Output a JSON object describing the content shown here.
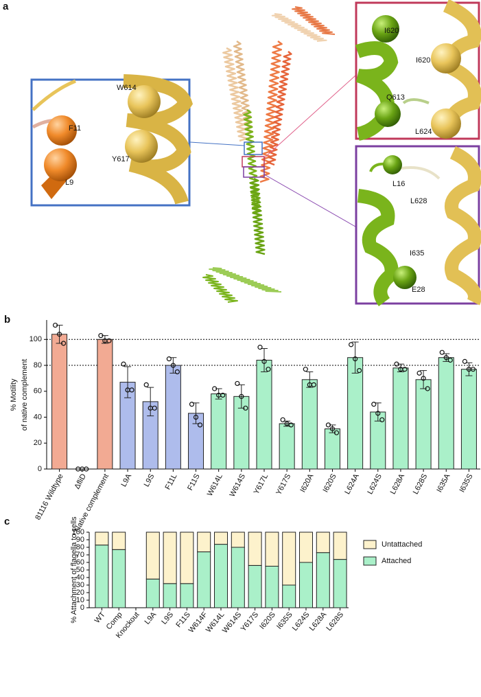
{
  "structure_panel": {
    "panel_label": "a",
    "residue_labels": [
      "W614",
      "F11",
      "Y617",
      "L9",
      "I620",
      "I620",
      "Q613",
      "L624",
      "L16",
      "L628",
      "I635",
      "E28"
    ]
  },
  "chart_data": [
    {
      "type": "bar",
      "panel_label": "b",
      "ylabel": [
        "% Motility",
        "of native complement"
      ],
      "categories": [
        "81116 Wildtype",
        "ΔfliD",
        "Native complement",
        "L9A",
        "L9S",
        "F11L",
        "F11S",
        "W614L",
        "W614S",
        "Y617L",
        "Y617S",
        "I620A",
        "I620S",
        "L624A",
        "L624S",
        "L628A",
        "L628S",
        "I635A",
        "I635S"
      ],
      "values": [
        104,
        0,
        100,
        67,
        52,
        80,
        43,
        58,
        56,
        84,
        35,
        69,
        31,
        86,
        44,
        78,
        69,
        86,
        77
      ],
      "errors": [
        7,
        0,
        3,
        12,
        11,
        6,
        8,
        4,
        9,
        9,
        2,
        6,
        3,
        12,
        7,
        3,
        7,
        3,
        5
      ],
      "replicates": [
        [
          111,
          104,
          97
        ],
        [
          0,
          0,
          0
        ],
        [
          103,
          99,
          99
        ],
        [
          81,
          61,
          61
        ],
        [
          65,
          47,
          47
        ],
        [
          85,
          80,
          75
        ],
        [
          50,
          40,
          34
        ],
        [
          62,
          57,
          57
        ],
        [
          66,
          56,
          47
        ],
        [
          94,
          83,
          77
        ],
        [
          38,
          35,
          34
        ],
        [
          77,
          65,
          65
        ],
        [
          34,
          31,
          28
        ],
        [
          96,
          85,
          76
        ],
        [
          50,
          43,
          38
        ],
        [
          81,
          77,
          77
        ],
        [
          74,
          70,
          62
        ],
        [
          90,
          86,
          84
        ],
        [
          83,
          77,
          77
        ]
      ],
      "colors": [
        "#f2aa93",
        "#f2aa93",
        "#f2aa93",
        "#aebcec",
        "#aebcec",
        "#aebcec",
        "#aebcec",
        "#aaf0c9",
        "#aaf0c9",
        "#aaf0c9",
        "#aaf0c9",
        "#aaf0c9",
        "#aaf0c9",
        "#aaf0c9",
        "#aaf0c9",
        "#aaf0c9",
        "#aaf0c9",
        "#aaf0c9",
        "#aaf0c9"
      ],
      "hlines": [
        100,
        80
      ],
      "ylim": [
        0,
        115
      ],
      "yticks": [
        0,
        20,
        40,
        60,
        80,
        100
      ]
    },
    {
      "type": "stacked_bar",
      "panel_label": "c",
      "ylabel": "% Attachment of flagella to cells",
      "categories": [
        "WT",
        "Comp",
        "Knockout",
        "L9A",
        "L9S",
        "F11S",
        "W614F",
        "W614L",
        "W614S",
        "Y617S",
        "I620S",
        "I635S",
        "L624S",
        "L628A",
        "L628S"
      ],
      "series": [
        {
          "name": "Attached",
          "color": "#aaf0c9",
          "values": [
            83,
            77,
            null,
            38,
            32,
            32,
            74,
            84,
            80,
            56,
            55,
            30,
            60,
            73,
            64
          ]
        },
        {
          "name": "Untattached",
          "color": "#fdf2cc",
          "values": [
            17,
            23,
            null,
            62,
            68,
            68,
            26,
            16,
            20,
            44,
            45,
            70,
            40,
            27,
            36
          ]
        }
      ],
      "ylim": [
        0,
        100
      ],
      "yticks": [
        0,
        10,
        20,
        30,
        40,
        50,
        60,
        70,
        80,
        90,
        100
      ]
    }
  ]
}
